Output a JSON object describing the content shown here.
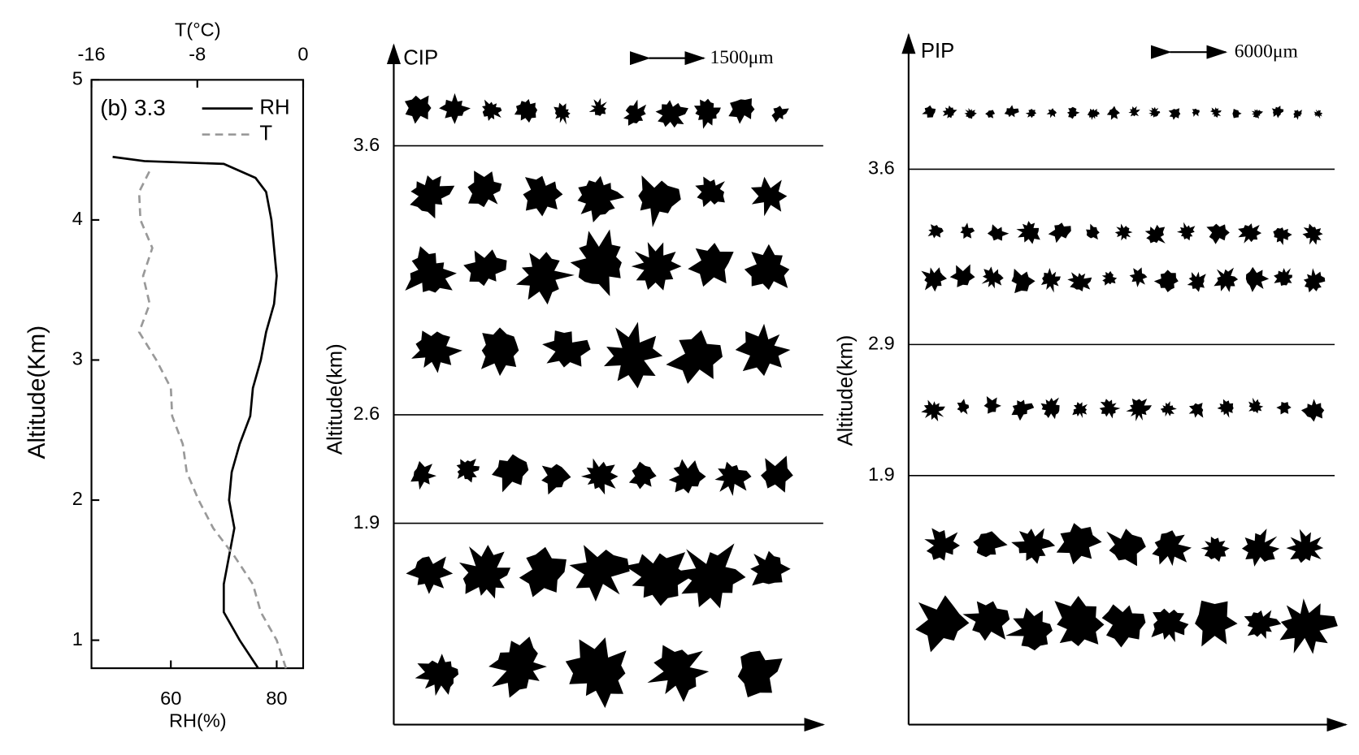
{
  "chart_data": {
    "type": "line",
    "annotation": "(b) 3.3",
    "ylabel": "Altitude(Km)",
    "xlabel": "RH(%)",
    "x2label": "T(°C)",
    "ylim": [
      0.8,
      5
    ],
    "yticks": [
      1,
      2,
      3,
      4,
      5
    ],
    "xlim": [
      45,
      85
    ],
    "xticks": [
      60,
      80
    ],
    "x2lim": [
      -16,
      0
    ],
    "x2ticks": [
      -16,
      -8,
      0
    ],
    "legend": "upper right",
    "series": [
      {
        "name": "RH",
        "color": "#000000",
        "dashed": false,
        "axis": "x",
        "y": [
          0.8,
          1.0,
          1.2,
          1.4,
          1.6,
          1.8,
          2.0,
          2.2,
          2.4,
          2.6,
          2.8,
          3.0,
          3.2,
          3.4,
          3.6,
          3.8,
          4.0,
          4.2,
          4.3,
          4.4,
          4.42,
          4.45
        ],
        "values": [
          76.5,
          73,
          70,
          70,
          71,
          72,
          71,
          71.5,
          73,
          75,
          75.5,
          77,
          78,
          79.5,
          80,
          79.5,
          79,
          78,
          76,
          70,
          55,
          49
        ]
      },
      {
        "name": "T",
        "color": "#999999",
        "dashed": true,
        "axis": "x2",
        "y": [
          0.8,
          1.0,
          1.2,
          1.4,
          1.6,
          1.8,
          2.0,
          2.2,
          2.4,
          2.6,
          2.8,
          3.0,
          3.2,
          3.4,
          3.6,
          3.8,
          4.0,
          4.2,
          4.35
        ],
        "values": [
          -1.3,
          -2,
          -3.2,
          -3.8,
          -5.2,
          -6.8,
          -7.9,
          -8.8,
          -9.1,
          -9.9,
          -10,
          -11.1,
          -12.4,
          -11.6,
          -12.1,
          -11.4,
          -12.3,
          -12.4,
          -11.6
        ]
      }
    ]
  },
  "cip": {
    "title": "CIP",
    "scale": "1500μm",
    "ylabel": "Altitude(km)",
    "levels": [
      3.6,
      2.6,
      1.9
    ]
  },
  "pip": {
    "title": "PIP",
    "scale": "6000μm",
    "ylabel": "Altitude(km)",
    "levels": [
      3.6,
      2.9,
      1.9
    ]
  }
}
